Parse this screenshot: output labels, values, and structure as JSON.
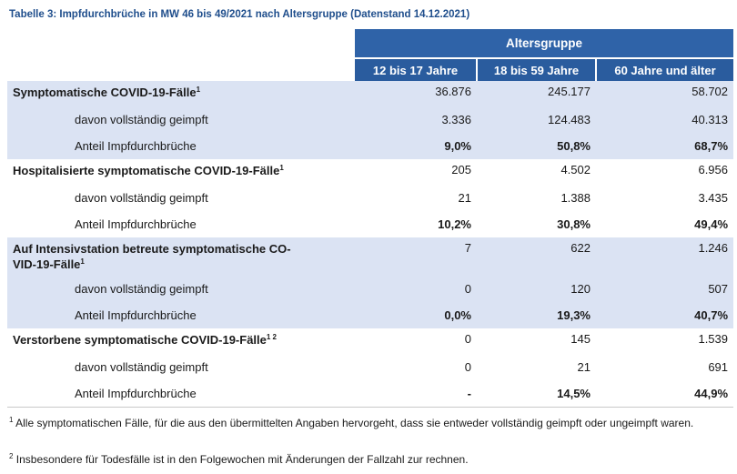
{
  "caption": "Tabelle 3: Impfdurchbrüche in MW 46 bis 49/2021 nach Altersgruppe (Datenstand 14.12.2021)",
  "header": {
    "group": "Altersgruppe",
    "ages": [
      "12 bis 17 Jahre",
      "18 bis 59 Jahre",
      "60 Jahre und älter"
    ]
  },
  "sections": [
    {
      "label": "Symptomatische COVID-19-Fälle",
      "sup": "1",
      "values": [
        "36.876",
        "245.177",
        "58.702"
      ],
      "vaccinated_label": "davon vollständig geimpft",
      "vaccinated": [
        "3.336",
        "124.483",
        "40.313"
      ],
      "share_label": "Anteil Impfdurchbrüche",
      "share": [
        "9,0%",
        "50,8%",
        "68,7%"
      ]
    },
    {
      "label": "Hospitalisierte symptomatische COVID-19-Fälle",
      "sup": "1",
      "values": [
        "205",
        "4.502",
        "6.956"
      ],
      "vaccinated_label": "davon vollständig geimpft",
      "vaccinated": [
        "21",
        "1.388",
        "3.435"
      ],
      "share_label": "Anteil Impfdurchbrüche",
      "share": [
        "10,2%",
        "30,8%",
        "49,4%"
      ]
    },
    {
      "label_line1": "Auf Intensivstation betreute symptomatische CO-",
      "label_line2": "VID-19-Fälle",
      "sup": "1",
      "values": [
        "7",
        "622",
        "1.246"
      ],
      "vaccinated_label": "davon vollständig geimpft",
      "vaccinated": [
        "0",
        "120",
        "507"
      ],
      "share_label": "Anteil Impfdurchbrüche",
      "share": [
        "0,0%",
        "19,3%",
        "40,7%"
      ]
    },
    {
      "label": "Verstorbene symptomatische COVID-19-Fälle",
      "sup": "1 2",
      "values": [
        "0",
        "145",
        "1.539"
      ],
      "vaccinated_label": "davon vollständig geimpft",
      "vaccinated": [
        "0",
        "21",
        "691"
      ],
      "share_label": "Anteil Impfdurchbrüche",
      "share": [
        "-",
        "14,5%",
        "44,9%"
      ]
    }
  ],
  "footnotes": {
    "f1_mark": "1",
    "f1": "Alle symptomatischen Fälle, für die aus den übermittelten Angaben hervorgeht, dass sie entweder vollständig geimpft oder ungeimpft waren.",
    "f2_mark": "2",
    "f2": "Insbesondere für Todesfälle ist in den Folgewochen mit Änderungen der Fallzahl zur rechnen."
  }
}
